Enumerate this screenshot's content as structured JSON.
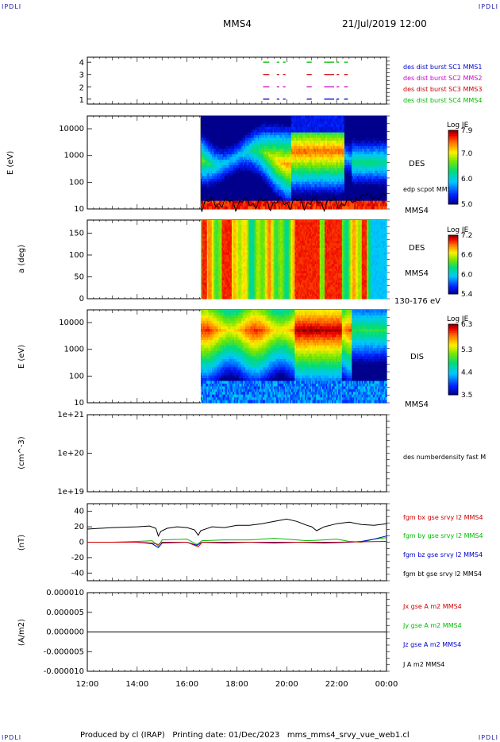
{
  "header": {
    "corner_tl": "IPDLI",
    "corner_tr": "IPDLI",
    "corner_bl": "IPDLI",
    "corner_br": "IPDLI",
    "spacecraft": "MMS4",
    "datetime": "21/Jul/2019 12:00"
  },
  "footer": {
    "text": "Produced by cl (IRAP)   Printing date: 01/Dec/2023   mms_mms4_srvy_vue_web1.cl"
  },
  "chart_data": [
    {
      "type": "line",
      "panel": "burst-availability",
      "yticks": [
        "1",
        "2",
        "3",
        "4"
      ],
      "ylim": [
        0.6,
        4.4
      ],
      "legend": [
        {
          "label": "des dist burst SC1 MMS1",
          "color": "#0000cc"
        },
        {
          "label": "des dist burst SC2 MMS2",
          "color": "#cc00cc"
        },
        {
          "label": "des dist burst SC3 MMS3",
          "color": "#cc0000"
        },
        {
          "label": "des dist burst SC4 MMS4",
          "color": "#00bb00"
        }
      ],
      "segments": [
        {
          "row": 4,
          "color": "#00bb00",
          "hours": [
            [
              19.05,
              19.3
            ],
            [
              19.6,
              19.7
            ],
            [
              19.85,
              19.95
            ],
            [
              20.8,
              21.0
            ],
            [
              21.5,
              21.9
            ],
            [
              22.0,
              22.1
            ],
            [
              22.3,
              22.45
            ]
          ]
        },
        {
          "row": 3,
          "color": "#cc0000",
          "hours": [
            [
              19.05,
              19.3
            ],
            [
              19.6,
              19.7
            ],
            [
              19.85,
              19.95
            ],
            [
              20.8,
              21.0
            ],
            [
              21.5,
              21.9
            ],
            [
              22.0,
              22.1
            ],
            [
              22.3,
              22.45
            ]
          ]
        },
        {
          "row": 2,
          "color": "#cc00cc",
          "hours": [
            [
              19.05,
              19.3
            ],
            [
              19.6,
              19.7
            ],
            [
              19.85,
              19.95
            ],
            [
              20.8,
              21.0
            ],
            [
              21.5,
              21.9
            ],
            [
              22.0,
              22.1
            ],
            [
              22.3,
              22.45
            ]
          ]
        },
        {
          "row": 1,
          "color": "#0000cc",
          "hours": [
            [
              19.05,
              19.3
            ],
            [
              19.6,
              19.7
            ],
            [
              19.85,
              19.95
            ],
            [
              20.8,
              21.0
            ],
            [
              21.5,
              21.9
            ],
            [
              22.0,
              22.1
            ],
            [
              22.3,
              22.45
            ]
          ]
        }
      ]
    },
    {
      "type": "heatmap",
      "panel": "des-energy",
      "ylabel": "E (eV)",
      "yscale": "log",
      "ylim": [
        10,
        30000
      ],
      "yticks": [
        "10",
        "100",
        "1000",
        "10000"
      ],
      "data_start_hour": 16.55,
      "label": "DES",
      "overlay_label": "edp scpot MMS4",
      "sublabel": "MMS4",
      "colorbar": {
        "title": "Log JE",
        "ticks": [
          "5.0",
          "6.0",
          "7.0",
          "7.9"
        ],
        "min": 5.0,
        "max": 7.9
      }
    },
    {
      "type": "heatmap",
      "panel": "des-pitch-angle",
      "ylabel": "a (deg)",
      "ylim": [
        0,
        180
      ],
      "yticks": [
        "0",
        "50",
        "100",
        "150"
      ],
      "data_start_hour": 16.55,
      "label": "DES",
      "sublabel": "MMS4",
      "energy_range": "130-176 eV",
      "colorbar": {
        "title": "Log JE",
        "ticks": [
          "5.4",
          "6.0",
          "6.6",
          "7.2"
        ],
        "min": 5.4,
        "max": 7.2
      }
    },
    {
      "type": "heatmap",
      "panel": "dis-energy",
      "ylabel": "E (eV)",
      "yscale": "log",
      "ylim": [
        10,
        30000
      ],
      "yticks": [
        "10",
        "100",
        "1000",
        "10000"
      ],
      "data_start_hour": 16.55,
      "label": "DIS",
      "sublabel": "MMS4",
      "colorbar": {
        "title": "Log JE",
        "ticks": [
          "3.5",
          "4.4",
          "5.3",
          "6.3"
        ],
        "min": 3.5,
        "max": 6.3
      }
    },
    {
      "type": "line",
      "panel": "density",
      "ylabel": "(cm^-3)",
      "yscale": "log",
      "yticks": [
        "1e+19",
        "1e+20",
        "1e+21"
      ],
      "legend": [
        {
          "label": "des numberdensity fast M",
          "color": "#000000"
        }
      ]
    },
    {
      "type": "line",
      "panel": "magnetic-field",
      "ylabel": "(nT)",
      "ylim": [
        -50,
        50
      ],
      "yticks": [
        "-40",
        "-20",
        "0",
        "20",
        "40"
      ],
      "legend": [
        {
          "label": "fgm bx gse srvy l2 MMS4",
          "color": "#cc0000"
        },
        {
          "label": "fgm by gse srvy l2 MMS4",
          "color": "#00bb00"
        },
        {
          "label": "fgm bz gse srvy l2 MMS4",
          "color": "#0000cc"
        },
        {
          "label": "fgm bt gse srvy l2 MMS4",
          "color": "#000000"
        }
      ],
      "series": [
        {
          "color": "#000000",
          "points": [
            [
              12.0,
              17
            ],
            [
              13.0,
              19
            ],
            [
              14.0,
              20
            ],
            [
              14.5,
              21
            ],
            [
              14.75,
              18
            ],
            [
              14.85,
              8
            ],
            [
              14.95,
              14
            ],
            [
              15.2,
              18
            ],
            [
              15.6,
              20
            ],
            [
              16.0,
              19
            ],
            [
              16.3,
              16
            ],
            [
              16.45,
              9
            ],
            [
              16.55,
              15
            ],
            [
              17.0,
              20
            ],
            [
              17.5,
              19
            ],
            [
              18.0,
              22
            ],
            [
              18.5,
              22
            ],
            [
              19.0,
              24
            ],
            [
              19.5,
              27
            ],
            [
              20.0,
              30
            ],
            [
              20.4,
              27
            ],
            [
              20.8,
              22
            ],
            [
              21.0,
              20
            ],
            [
              21.2,
              15
            ],
            [
              21.5,
              20
            ],
            [
              22.0,
              24
            ],
            [
              22.5,
              26
            ],
            [
              23.0,
              23
            ],
            [
              23.5,
              22
            ],
            [
              24.0,
              24
            ]
          ]
        },
        {
          "color": "#00bb00",
          "points": [
            [
              12.0,
              0
            ],
            [
              13.0,
              0
            ],
            [
              14.0,
              1
            ],
            [
              14.6,
              2
            ],
            [
              14.85,
              -5
            ],
            [
              15.0,
              3
            ],
            [
              16.0,
              4
            ],
            [
              16.4,
              -3
            ],
            [
              16.6,
              2
            ],
            [
              17.5,
              3
            ],
            [
              18.5,
              3
            ],
            [
              19.5,
              5
            ],
            [
              20.0,
              4
            ],
            [
              20.8,
              2
            ],
            [
              21.5,
              3
            ],
            [
              22.0,
              4
            ],
            [
              22.5,
              1
            ],
            [
              23.0,
              0
            ],
            [
              23.5,
              4
            ],
            [
              24.0,
              6
            ]
          ]
        },
        {
          "color": "#0000cc",
          "points": [
            [
              12.0,
              0
            ],
            [
              13.0,
              0
            ],
            [
              14.0,
              0
            ],
            [
              14.6,
              -2
            ],
            [
              14.85,
              -7
            ],
            [
              15.0,
              -1
            ],
            [
              16.0,
              0
            ],
            [
              16.4,
              -4
            ],
            [
              16.6,
              0
            ],
            [
              17.5,
              -1
            ],
            [
              18.5,
              0
            ],
            [
              19.5,
              -1
            ],
            [
              20.5,
              0
            ],
            [
              21.5,
              -1
            ],
            [
              22.5,
              0
            ],
            [
              23.0,
              1
            ],
            [
              23.5,
              4
            ],
            [
              24.0,
              8
            ]
          ]
        },
        {
          "color": "#cc0000",
          "points": [
            [
              12.0,
              0
            ],
            [
              13.0,
              0
            ],
            [
              14.0,
              0
            ],
            [
              14.6,
              -1
            ],
            [
              14.85,
              -3
            ],
            [
              15.0,
              0
            ],
            [
              16.0,
              0
            ],
            [
              16.45,
              -6
            ],
            [
              16.6,
              0
            ],
            [
              18.0,
              0
            ],
            [
              20.0,
              0
            ],
            [
              22.0,
              0
            ],
            [
              24.0,
              1
            ]
          ]
        }
      ]
    },
    {
      "type": "line",
      "panel": "current-density",
      "ylabel": "(A/m2)",
      "ylim": [
        -1e-05,
        1e-05
      ],
      "yticks": [
        "-0.000010",
        "-0.000005",
        "0.000000",
        "0.000005",
        "0.000010"
      ],
      "legend": [
        {
          "label": "Jx gse A m2 MMS4",
          "color": "#cc0000"
        },
        {
          "label": "Jy gse A m2 MMS4",
          "color": "#00bb00"
        },
        {
          "label": "Jz gse A m2 MMS4",
          "color": "#0000cc"
        },
        {
          "label": "J A m2 MMS4",
          "color": "#000000"
        }
      ],
      "series": [
        {
          "color": "#000000",
          "points": [
            [
              12.0,
              0
            ],
            [
              24.0,
              0
            ]
          ]
        }
      ]
    }
  ],
  "x_axis": {
    "hours": [
      12,
      14,
      16,
      18,
      20,
      22,
      24
    ],
    "ticks": [
      "12:00",
      "14:00",
      "16:00",
      "18:00",
      "20:00",
      "22:00",
      "00:00"
    ]
  }
}
